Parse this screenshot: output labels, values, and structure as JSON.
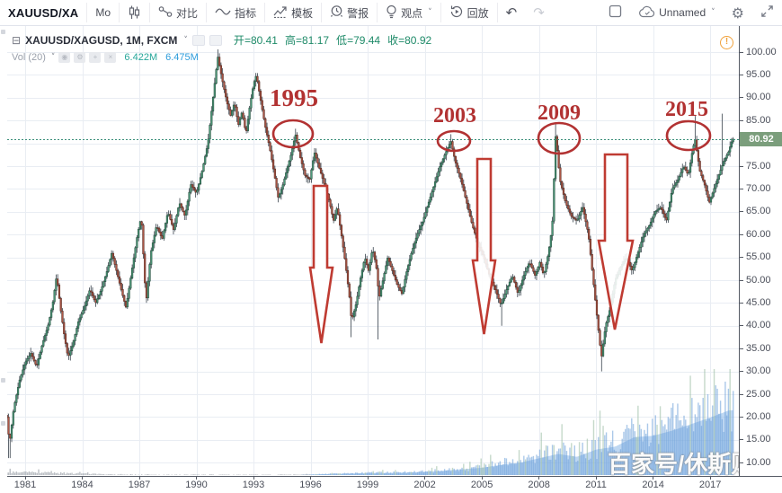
{
  "toolbar": {
    "symbol": "XAUUSD/XA",
    "interval": "Mo",
    "compare": "对比",
    "indicators": "指标",
    "templates": "模板",
    "alerts": "警报",
    "ideas": "观点",
    "replay": "回放",
    "layout_name": "Unnamed",
    "accent_red": "#b23232"
  },
  "header": {
    "legend": "XAUUSD/XAGUSD, 1M, FXCM",
    "open_label": "开",
    "open": "=80.41",
    "high_label": "高",
    "high": "=81.17",
    "low_label": "低",
    "low": "=79.44",
    "close_label": "收",
    "close": "=80.92"
  },
  "vol_row": {
    "label": "Vol (20)",
    "current": "6.422M",
    "ma": "6.475M"
  },
  "watermark": "百家号/休斯财",
  "price_axis": {
    "last_label": "80.92"
  },
  "chart_data": {
    "type": "candlestick",
    "title": "XAUUSD/XAGUSD monthly gold-silver ratio with annotated peaks",
    "symbol": "XAUUSD/XAGUSD",
    "interval": "1M",
    "exchange": "FXCM",
    "ohlc_current": {
      "open": 80.41,
      "high": 81.17,
      "low": 79.44,
      "close": 80.92
    },
    "volume_current_millions": 6.422,
    "volume_ma20_millions": 6.475,
    "ylim": [
      10,
      101
    ],
    "y_tick_step": 5,
    "y_ticks": [
      100,
      95,
      90,
      85,
      75,
      70,
      65,
      60,
      55,
      50,
      45,
      40,
      35,
      30,
      25,
      20,
      15,
      10
    ],
    "x_ticks": [
      1981,
      1984,
      1987,
      1990,
      1993,
      1996,
      1999,
      2002,
      2005,
      2008,
      2011,
      2014,
      2017
    ],
    "grid": true,
    "last_price": 80.92,
    "series_keyframes": [
      [
        1980.05,
        20
      ],
      [
        1980.17,
        14
      ],
      [
        1980.4,
        22
      ],
      [
        1980.7,
        28
      ],
      [
        1981.0,
        32
      ],
      [
        1981.3,
        34
      ],
      [
        1981.6,
        31
      ],
      [
        1981.9,
        36
      ],
      [
        1982.2,
        40
      ],
      [
        1982.45,
        45
      ],
      [
        1982.65,
        51
      ],
      [
        1982.85,
        44
      ],
      [
        1983.05,
        38
      ],
      [
        1983.25,
        33
      ],
      [
        1983.5,
        36
      ],
      [
        1983.8,
        41
      ],
      [
        1984.1,
        44
      ],
      [
        1984.4,
        48
      ],
      [
        1984.7,
        45
      ],
      [
        1985.0,
        48
      ],
      [
        1985.3,
        52
      ],
      [
        1985.55,
        56
      ],
      [
        1985.8,
        52
      ],
      [
        1986.1,
        47
      ],
      [
        1986.3,
        44
      ],
      [
        1986.6,
        52
      ],
      [
        1986.9,
        60
      ],
      [
        1987.1,
        64
      ],
      [
        1987.35,
        45
      ],
      [
        1987.6,
        56
      ],
      [
        1987.9,
        62
      ],
      [
        1988.2,
        59
      ],
      [
        1988.5,
        65
      ],
      [
        1988.8,
        61
      ],
      [
        1989.1,
        67
      ],
      [
        1989.4,
        64
      ],
      [
        1989.7,
        71
      ],
      [
        1990.0,
        69
      ],
      [
        1990.3,
        74
      ],
      [
        1990.6,
        80
      ],
      [
        1990.9,
        91
      ],
      [
        1991.12,
        99
      ],
      [
        1991.35,
        94
      ],
      [
        1991.6,
        89
      ],
      [
        1991.8,
        86
      ],
      [
        1992.0,
        89
      ],
      [
        1992.2,
        84
      ],
      [
        1992.4,
        87
      ],
      [
        1992.6,
        82
      ],
      [
        1992.8,
        88
      ],
      [
        1993.0,
        93
      ],
      [
        1993.15,
        95
      ],
      [
        1993.35,
        90
      ],
      [
        1993.6,
        84
      ],
      [
        1993.85,
        79
      ],
      [
        1994.1,
        73
      ],
      [
        1994.3,
        68
      ],
      [
        1994.55,
        71
      ],
      [
        1994.8,
        75
      ],
      [
        1995.0,
        78
      ],
      [
        1995.2,
        82
      ],
      [
        1995.45,
        77
      ],
      [
        1995.7,
        73
      ],
      [
        1995.95,
        72
      ],
      [
        1996.2,
        78
      ],
      [
        1996.5,
        74
      ],
      [
        1996.8,
        70
      ],
      [
        1997.0,
        67
      ],
      [
        1997.2,
        63
      ],
      [
        1997.4,
        66
      ],
      [
        1997.65,
        59
      ],
      [
        1997.85,
        53
      ],
      [
        1998.05,
        46
      ],
      [
        1998.15,
        41
      ],
      [
        1998.4,
        45
      ],
      [
        1998.6,
        50
      ],
      [
        1998.85,
        55
      ],
      [
        1999.05,
        52
      ],
      [
        1999.25,
        57
      ],
      [
        1999.45,
        53
      ],
      [
        1999.6,
        46
      ],
      [
        1999.8,
        50
      ],
      [
        2000.05,
        55
      ],
      [
        2000.3,
        52
      ],
      [
        2000.55,
        49
      ],
      [
        2000.8,
        47
      ],
      [
        2001.05,
        52
      ],
      [
        2001.3,
        56
      ],
      [
        2001.6,
        60
      ],
      [
        2001.9,
        63
      ],
      [
        2002.2,
        67
      ],
      [
        2002.5,
        71
      ],
      [
        2002.8,
        75
      ],
      [
        2003.1,
        78
      ],
      [
        2003.37,
        80.5
      ],
      [
        2003.6,
        76
      ],
      [
        2003.9,
        72
      ],
      [
        2004.2,
        67
      ],
      [
        2004.5,
        62
      ],
      [
        2004.8,
        58
      ],
      [
        2005.1,
        55
      ],
      [
        2005.4,
        51
      ],
      [
        2005.7,
        48
      ],
      [
        2006.0,
        44.5
      ],
      [
        2006.3,
        48
      ],
      [
        2006.6,
        51
      ],
      [
        2006.9,
        47
      ],
      [
        2007.2,
        51
      ],
      [
        2007.5,
        54
      ],
      [
        2007.8,
        51
      ],
      [
        2008.05,
        54
      ],
      [
        2008.25,
        51
      ],
      [
        2008.5,
        56
      ],
      [
        2008.7,
        62
      ],
      [
        2008.88,
        82
      ],
      [
        2009.1,
        72
      ],
      [
        2009.4,
        67
      ],
      [
        2009.7,
        64
      ],
      [
        2010.0,
        63
      ],
      [
        2010.3,
        66
      ],
      [
        2010.6,
        60
      ],
      [
        2010.9,
        48
      ],
      [
        2011.1,
        40
      ],
      [
        2011.28,
        33
      ],
      [
        2011.5,
        40
      ],
      [
        2011.75,
        44
      ],
      [
        2012.0,
        50
      ],
      [
        2012.3,
        53
      ],
      [
        2012.6,
        55
      ],
      [
        2012.9,
        52
      ],
      [
        2013.2,
        56
      ],
      [
        2013.5,
        60
      ],
      [
        2013.8,
        62
      ],
      [
        2014.1,
        65
      ],
      [
        2014.4,
        66
      ],
      [
        2014.7,
        63
      ],
      [
        2015.0,
        70
      ],
      [
        2015.3,
        72
      ],
      [
        2015.6,
        75
      ],
      [
        2015.85,
        73
      ],
      [
        2016.05,
        78
      ],
      [
        2016.2,
        81
      ],
      [
        2016.45,
        74
      ],
      [
        2016.7,
        71
      ],
      [
        2016.95,
        67
      ],
      [
        2017.2,
        70
      ],
      [
        2017.45,
        73
      ],
      [
        2017.7,
        76
      ],
      [
        2017.95,
        78
      ],
      [
        2018.17,
        80.92
      ]
    ],
    "spikes": [
      {
        "t": 1980.17,
        "low": 11.0
      },
      {
        "t": 1991.12,
        "high": 100.6
      },
      {
        "t": 1995.2,
        "high": 83.2
      },
      {
        "t": 1998.12,
        "low": 37.5
      },
      {
        "t": 1999.58,
        "low": 37.0
      },
      {
        "t": 2003.37,
        "high": 82.0
      },
      {
        "t": 2006.05,
        "low": 40.0
      },
      {
        "t": 2008.88,
        "high": 84.6
      },
      {
        "t": 2011.28,
        "low": 30.0
      },
      {
        "t": 2016.2,
        "high": 86.0
      },
      {
        "t": 2017.63,
        "high": 86.5
      },
      {
        "t": 2018.17,
        "high": 81.17
      }
    ],
    "volume_profile_millions": [
      [
        1980,
        0.35
      ],
      [
        1981,
        0.4
      ],
      [
        1982,
        0.3
      ],
      [
        1983,
        0.25
      ],
      [
        1984,
        0.18
      ],
      [
        1985,
        0.1
      ],
      [
        1986,
        0.07
      ],
      [
        1988,
        0.05
      ],
      [
        1990,
        0.05
      ],
      [
        1992,
        0.04
      ],
      [
        1994,
        0.05
      ],
      [
        1996,
        0.07
      ],
      [
        1997,
        0.15
      ],
      [
        1998,
        0.22
      ],
      [
        1999,
        0.28
      ],
      [
        2000,
        0.3
      ],
      [
        2001,
        0.35
      ],
      [
        2002,
        0.45
      ],
      [
        2003,
        0.6
      ],
      [
        2004,
        0.8
      ],
      [
        2005,
        1.0
      ],
      [
        2006,
        1.4
      ],
      [
        2007,
        1.7
      ],
      [
        2008,
        2.3
      ],
      [
        2009,
        2.9
      ],
      [
        2010,
        2.5
      ],
      [
        2011,
        3.5
      ],
      [
        2012,
        3.9
      ],
      [
        2013,
        5.2
      ],
      [
        2014,
        5.4
      ],
      [
        2015,
        6.1
      ],
      [
        2016,
        7.0
      ],
      [
        2017,
        7.9
      ],
      [
        2018,
        8.9
      ]
    ],
    "annotations": {
      "years": [
        "1995",
        "2003",
        "2009",
        "2015"
      ],
      "annotation_color": "#b23232",
      "marked_peaks": [
        {
          "label": "1995",
          "t": 1995.2,
          "value": 82
        },
        {
          "label": "2003",
          "t": 2003.4,
          "value": 80.5
        },
        {
          "label": "2009",
          "t": 2008.9,
          "value": 82
        },
        {
          "label": "2015",
          "t": 2016.1,
          "value": 81
        }
      ],
      "down_arrows": [
        {
          "near_year": 1996,
          "points_to_value": 40
        },
        {
          "near_year": 2005,
          "points_to_value": 41
        },
        {
          "near_year": 2011,
          "points_to_value": 33
        }
      ]
    },
    "colors": {
      "up_body": "#4f9e7e",
      "up_border": "#27503f",
      "down_body": "#b05848",
      "down_border": "#5c2c22",
      "wick": "#37414b",
      "grid": "#e9edf3",
      "last_price_line": "#3a8f7a",
      "badge_bg": "#7b9e7c",
      "volume_blue": "rgba(100,155,215,0.55)",
      "volume_area": "rgba(125,175,230,0.5)"
    }
  }
}
